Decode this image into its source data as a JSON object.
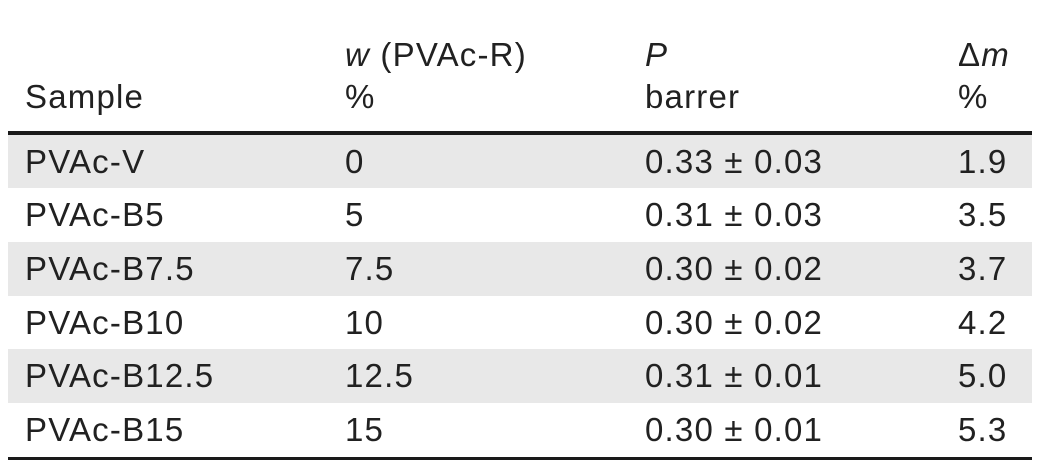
{
  "colors": {
    "background": "#ffffff",
    "stripe": "#e8e8e8",
    "rule": "#1a1a1a",
    "text": "#212121"
  },
  "table": {
    "header": {
      "col1": {
        "line2": "Sample"
      },
      "col2": {
        "line1_italic": "w",
        "line1_rest": " (PVAc-R)",
        "line2": "%"
      },
      "col3": {
        "line1_italic": "P",
        "line2": "barrer"
      },
      "col4": {
        "line1_upright": "Δ",
        "line1_italic": "m",
        "line2": "%"
      }
    },
    "rows": [
      {
        "sample": "PVAc-V",
        "w_pct": "0",
        "p_barrer": "0.33 ± 0.03",
        "dm_pct": "1.9"
      },
      {
        "sample": "PVAc-B5",
        "w_pct": "5",
        "p_barrer": "0.31 ± 0.03",
        "dm_pct": "3.5"
      },
      {
        "sample": "PVAc-B7.5",
        "w_pct": "7.5",
        "p_barrer": "0.30 ± 0.02",
        "dm_pct": "3.7"
      },
      {
        "sample": "PVAc-B10",
        "w_pct": "10",
        "p_barrer": "0.30 ± 0.02",
        "dm_pct": "4.2"
      },
      {
        "sample": "PVAc-B12.5",
        "w_pct": "12.5",
        "p_barrer": "0.31 ± 0.01",
        "dm_pct": "5.0"
      },
      {
        "sample": "PVAc-B15",
        "w_pct": "15",
        "p_barrer": "0.30 ± 0.01",
        "dm_pct": "5.3"
      }
    ]
  }
}
